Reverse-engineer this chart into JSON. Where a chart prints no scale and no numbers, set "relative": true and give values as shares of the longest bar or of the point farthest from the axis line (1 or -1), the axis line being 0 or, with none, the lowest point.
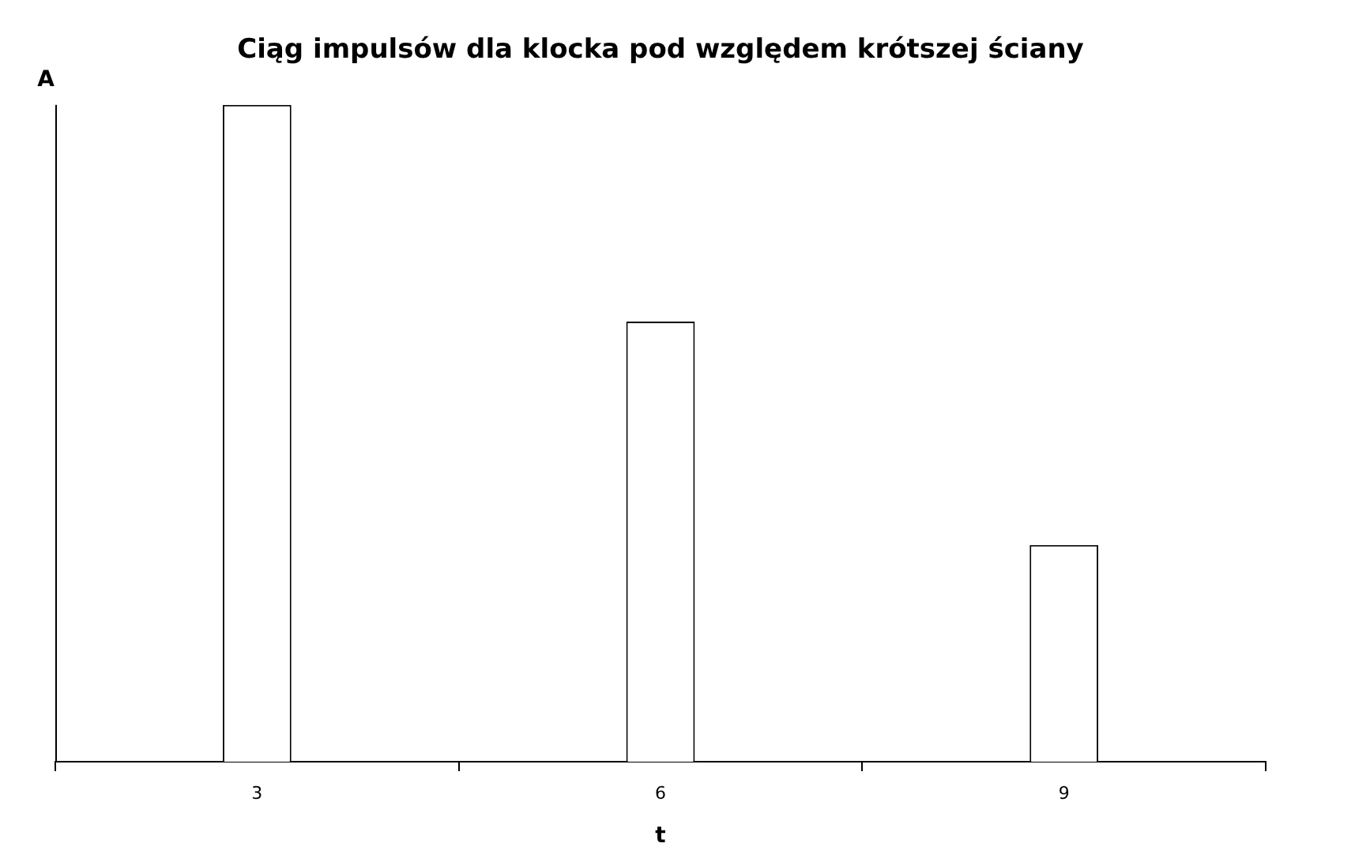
{
  "chart_data": {
    "type": "bar",
    "title": "Ciąg impulsów dla klocka pod względem krótszej ściany",
    "xlabel": "t",
    "ylabel": "A",
    "categories": [
      "3",
      "6",
      "9"
    ],
    "values": [
      1,
      0.67,
      0.33
    ],
    "color": "#ffffff",
    "relative": true,
    "grid": false,
    "legend": false
  }
}
